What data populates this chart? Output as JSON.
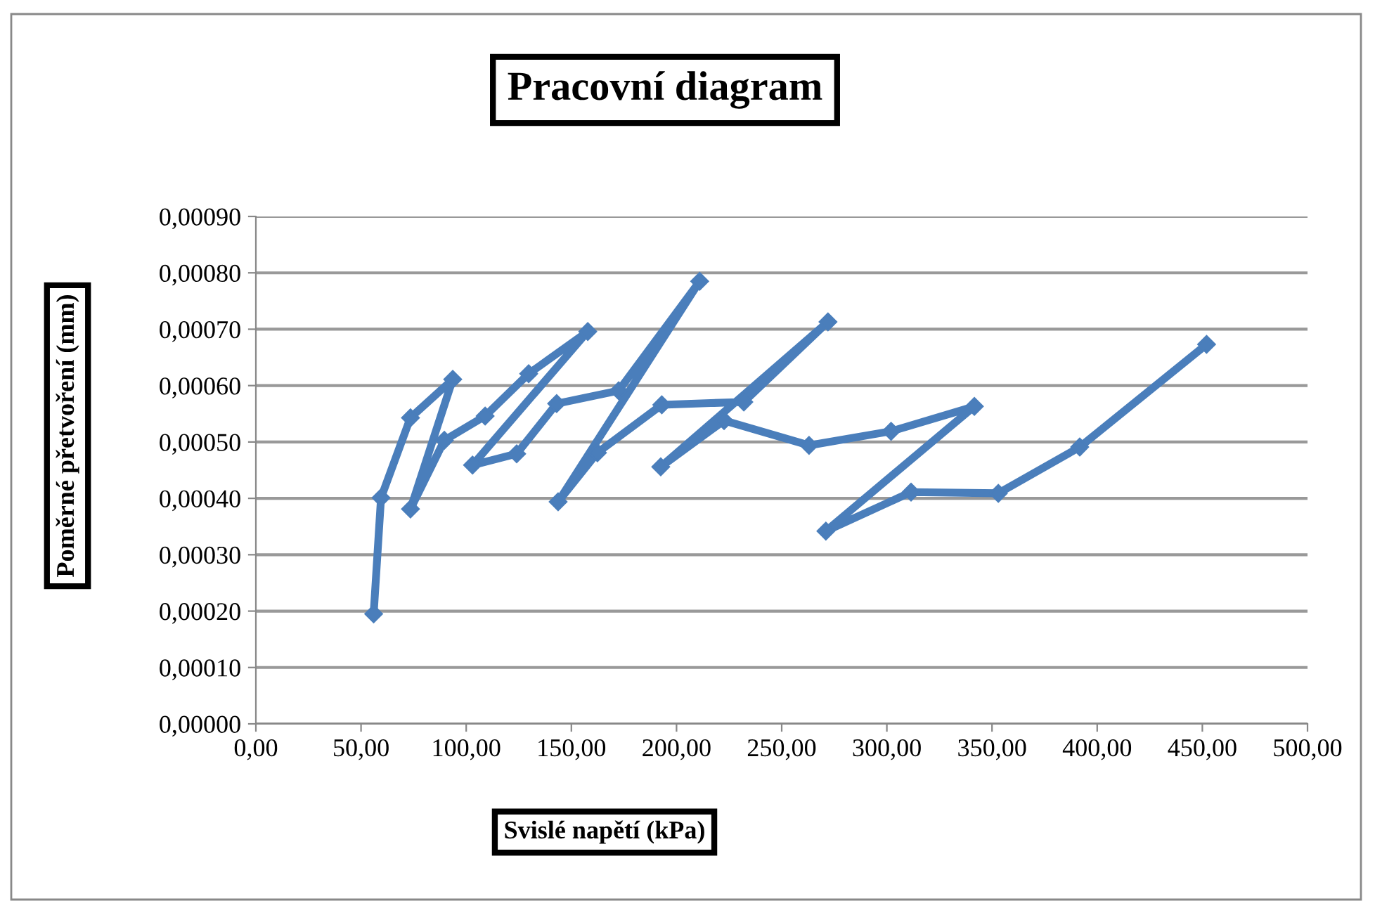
{
  "chart_data": {
    "type": "line",
    "title": "Pracovní diagram",
    "xlabel": "Svislé napětí (kPa)",
    "ylabel": "Poměrné přetvoření (mm)",
    "series": [
      {
        "color": "#4a7ebb",
        "x": [
          56,
          59.5,
          73.5,
          93.6,
          73.5,
          89.6,
          109,
          129.7,
          157.8,
          103,
          124,
          143,
          172.5,
          211,
          143.7,
          162.4,
          193,
          232,
          272,
          192.5,
          222.6,
          263,
          302,
          341.6,
          271,
          311.5,
          353,
          391.7,
          452
        ],
        "values": [
          0.000195,
          0.000401,
          0.000543,
          0.000611,
          0.000381,
          0.000503,
          0.000546,
          0.000621,
          0.000696,
          0.000459,
          0.000479,
          0.000568,
          0.000591,
          0.000785,
          0.000394,
          0.000481,
          0.000566,
          0.000571,
          0.000713,
          0.000456,
          0.000538,
          0.000494,
          0.000519,
          0.000563,
          0.000342,
          0.000411,
          0.000409,
          0.000491,
          0.000673
        ]
      }
    ],
    "xlim": [
      0,
      500
    ],
    "ylim": [
      0,
      0.0009
    ],
    "xticks": [
      {
        "value": 0,
        "label": "0,00"
      },
      {
        "value": 50,
        "label": "50,00"
      },
      {
        "value": 100,
        "label": "100,00"
      },
      {
        "value": 150,
        "label": "150,00"
      },
      {
        "value": 200,
        "label": "200,00"
      },
      {
        "value": 250,
        "label": "250,00"
      },
      {
        "value": 300,
        "label": "300,00"
      },
      {
        "value": 350,
        "label": "350,00"
      },
      {
        "value": 400,
        "label": "400,00"
      },
      {
        "value": 450,
        "label": "450,00"
      },
      {
        "value": 500,
        "label": "500,00"
      }
    ],
    "yticks": [
      {
        "value": 0,
        "label": "0,00000"
      },
      {
        "value": 0.0001,
        "label": "0,00010"
      },
      {
        "value": 0.0002,
        "label": "0,00020"
      },
      {
        "value": 0.0003,
        "label": "0,00030"
      },
      {
        "value": 0.0004,
        "label": "0,00040"
      },
      {
        "value": 0.0005,
        "label": "0,00050"
      },
      {
        "value": 0.0006,
        "label": "0,00060"
      },
      {
        "value": 0.0007,
        "label": "0,00070"
      },
      {
        "value": 0.0008,
        "label": "0,00080"
      },
      {
        "value": 0.0009,
        "label": "0,00090"
      }
    ],
    "grid": "y",
    "marker": "diamond",
    "line_style": "solid",
    "legend": false
  }
}
